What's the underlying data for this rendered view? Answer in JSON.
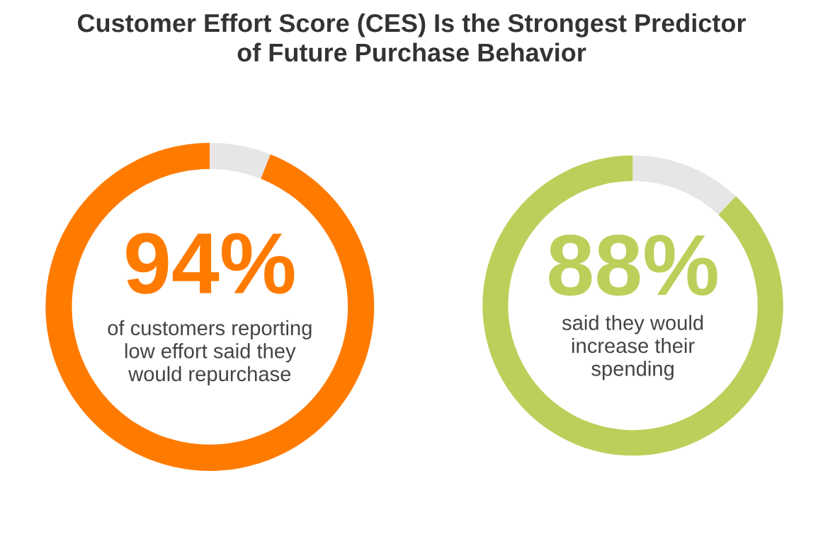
{
  "chart_data": [
    {
      "type": "donut",
      "title": "Customer Effort Score (CES) Is the Strongest Predictor\nof Future Purchase Behavior",
      "categories": [
        null,
        null
      ],
      "values": [
        94,
        6
      ],
      "colors": [
        "#ff7b00",
        "#e6e6e6"
      ],
      "value_labels": [
        "94%",
        null
      ],
      "annotations": [
        "of customers reporting\nlow effort said they\nwould repurchase"
      ]
    },
    {
      "type": "donut",
      "categories": [
        null,
        null
      ],
      "values": [
        88,
        12
      ],
      "colors": [
        "#bccf5a",
        "#e6e6e6"
      ],
      "value_labels": [
        "88%",
        null
      ],
      "annotations": [
        "said they would\nincrease their\nspending"
      ]
    }
  ]
}
